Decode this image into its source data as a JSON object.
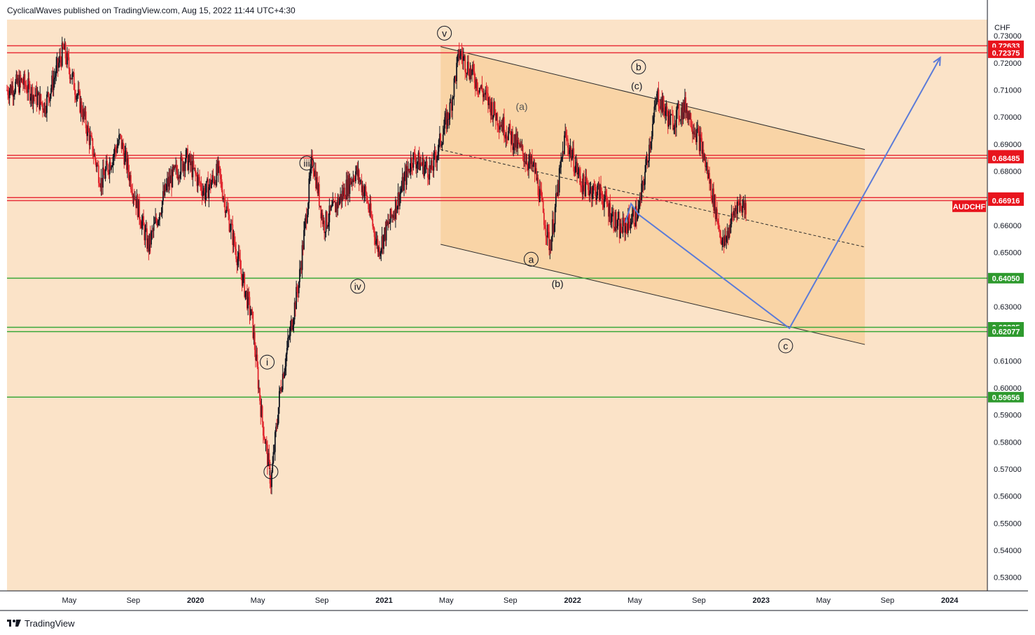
{
  "header": {
    "publisher_line": "CyclicalWaves published on TradingView.com, Aug 15, 2022 11:44 UTC+4:30"
  },
  "footer": {
    "brand": "TradingView"
  },
  "colors": {
    "background": "#fbe3c8",
    "channel_fill": "#f8cf9b",
    "resistance": "#e8303a",
    "support": "#3aa83a",
    "projection": "#5b7bd8",
    "candle_up": "#131722",
    "candle_down": "#e0262e",
    "price_tag": "#e8141d",
    "support_tag": "#2e9a2e"
  },
  "chart_data": {
    "type": "candlestick",
    "symbol": "AUDCHF",
    "currency_label": "CHF",
    "ylim": [
      0.525,
      0.736
    ],
    "y_ticks": [
      "0.53000",
      "0.54000",
      "0.55000",
      "0.56000",
      "0.57000",
      "0.58000",
      "0.59000",
      "0.60000",
      "0.61000",
      "0.62000",
      "0.63000",
      "0.64000",
      "0.65000",
      "0.66000",
      "0.67000",
      "0.68000",
      "0.69000",
      "0.70000",
      "0.71000",
      "0.72000",
      "0.73000"
    ],
    "x_ticks": [
      "May",
      "Sep",
      "2020",
      "May",
      "Sep",
      "2021",
      "May",
      "Sep",
      "2022",
      "May",
      "Sep",
      "2023",
      "May",
      "Sep",
      "2024"
    ],
    "x_ticks_t": [
      2019.33,
      2019.67,
      2020.0,
      2020.33,
      2020.67,
      2021.0,
      2021.33,
      2021.67,
      2022.0,
      2022.33,
      2022.67,
      2023.0,
      2023.33,
      2023.67,
      2024.0
    ],
    "xlim": [
      2019.0,
      2024.2
    ],
    "price_path": [
      [
        2019.0,
        0.71
      ],
      [
        2019.08,
        0.713
      ],
      [
        2019.2,
        0.704
      ],
      [
        2019.3,
        0.725
      ],
      [
        2019.4,
        0.702
      ],
      [
        2019.5,
        0.676
      ],
      [
        2019.6,
        0.692
      ],
      [
        2019.7,
        0.665
      ],
      [
        2019.75,
        0.652
      ],
      [
        2019.85,
        0.675
      ],
      [
        2019.95,
        0.685
      ],
      [
        2020.05,
        0.672
      ],
      [
        2020.12,
        0.68
      ],
      [
        2020.2,
        0.655
      ],
      [
        2020.3,
        0.625
      ],
      [
        2020.35,
        0.59
      ],
      [
        2020.4,
        0.565
      ],
      [
        2020.45,
        0.6
      ],
      [
        2020.55,
        0.64
      ],
      [
        2020.62,
        0.685
      ],
      [
        2020.68,
        0.66
      ],
      [
        2020.75,
        0.668
      ],
      [
        2020.85,
        0.68
      ],
      [
        2020.9,
        0.672
      ],
      [
        2020.97,
        0.651
      ],
      [
        2021.05,
        0.665
      ],
      [
        2021.15,
        0.685
      ],
      [
        2021.25,
        0.68
      ],
      [
        2021.35,
        0.703
      ],
      [
        2021.4,
        0.724
      ],
      [
        2021.5,
        0.712
      ],
      [
        2021.6,
        0.7
      ],
      [
        2021.7,
        0.69
      ],
      [
        2021.8,
        0.68
      ],
      [
        2021.88,
        0.652
      ],
      [
        2021.96,
        0.693
      ],
      [
        2022.05,
        0.675
      ],
      [
        2022.15,
        0.672
      ],
      [
        2022.25,
        0.658
      ],
      [
        2022.35,
        0.665
      ],
      [
        2022.45,
        0.708
      ],
      [
        2022.52,
        0.698
      ],
      [
        2022.6,
        0.704
      ],
      [
        2022.68,
        0.69
      ],
      [
        2022.73,
        0.675
      ],
      [
        2022.8,
        0.652
      ],
      [
        2022.87,
        0.668
      ],
      [
        2022.92,
        0.667
      ]
    ],
    "resistance_levels": [
      "0.72633",
      "0.72375",
      "0.68587",
      "0.68485",
      "0.67025",
      "0.66916"
    ],
    "support_levels": [
      "0.64050",
      "0.62235",
      "0.62077",
      "0.59656"
    ],
    "last_price_tag": "AUDCHF",
    "channel": {
      "upper": [
        [
          2021.3,
          0.726
        ],
        [
          2023.55,
          0.688
        ]
      ],
      "mid": [
        [
          2021.3,
          0.688
        ],
        [
          2023.55,
          0.652
        ]
      ],
      "lower": [
        [
          2021.3,
          0.653
        ],
        [
          2023.55,
          0.616
        ]
      ]
    },
    "projection_path": [
      [
        2022.28,
        0.661
      ],
      [
        2022.31,
        0.668
      ],
      [
        2022.35,
        0.664
      ],
      [
        2023.15,
        0.622
      ],
      [
        2023.95,
        0.722
      ]
    ],
    "wave_labels": [
      {
        "text": "v",
        "t": 2021.32,
        "p": 0.731,
        "circled": true
      },
      {
        "text": "iii",
        "t": 2020.59,
        "p": 0.683,
        "circled": true
      },
      {
        "text": "iv",
        "t": 2020.86,
        "p": 0.6375,
        "circled": true
      },
      {
        "text": "i",
        "t": 2020.38,
        "p": 0.6095,
        "circled": true
      },
      {
        "text": "ii",
        "t": 2020.4,
        "p": 0.569,
        "circled": true
      },
      {
        "text": "a",
        "t": 2021.78,
        "p": 0.6475,
        "circled": true
      },
      {
        "text": "b",
        "t": 2022.35,
        "p": 0.7185,
        "circled": true
      },
      {
        "text": "c",
        "t": 2023.13,
        "p": 0.6155,
        "circled": true
      },
      {
        "text": "(a)",
        "t": 2021.73,
        "p": 0.704,
        "circled": false
      },
      {
        "text": "(b)",
        "t": 2021.92,
        "p": 0.6385,
        "circled": false
      },
      {
        "text": "(c)",
        "t": 2022.34,
        "p": 0.7115,
        "circled": false
      }
    ]
  }
}
